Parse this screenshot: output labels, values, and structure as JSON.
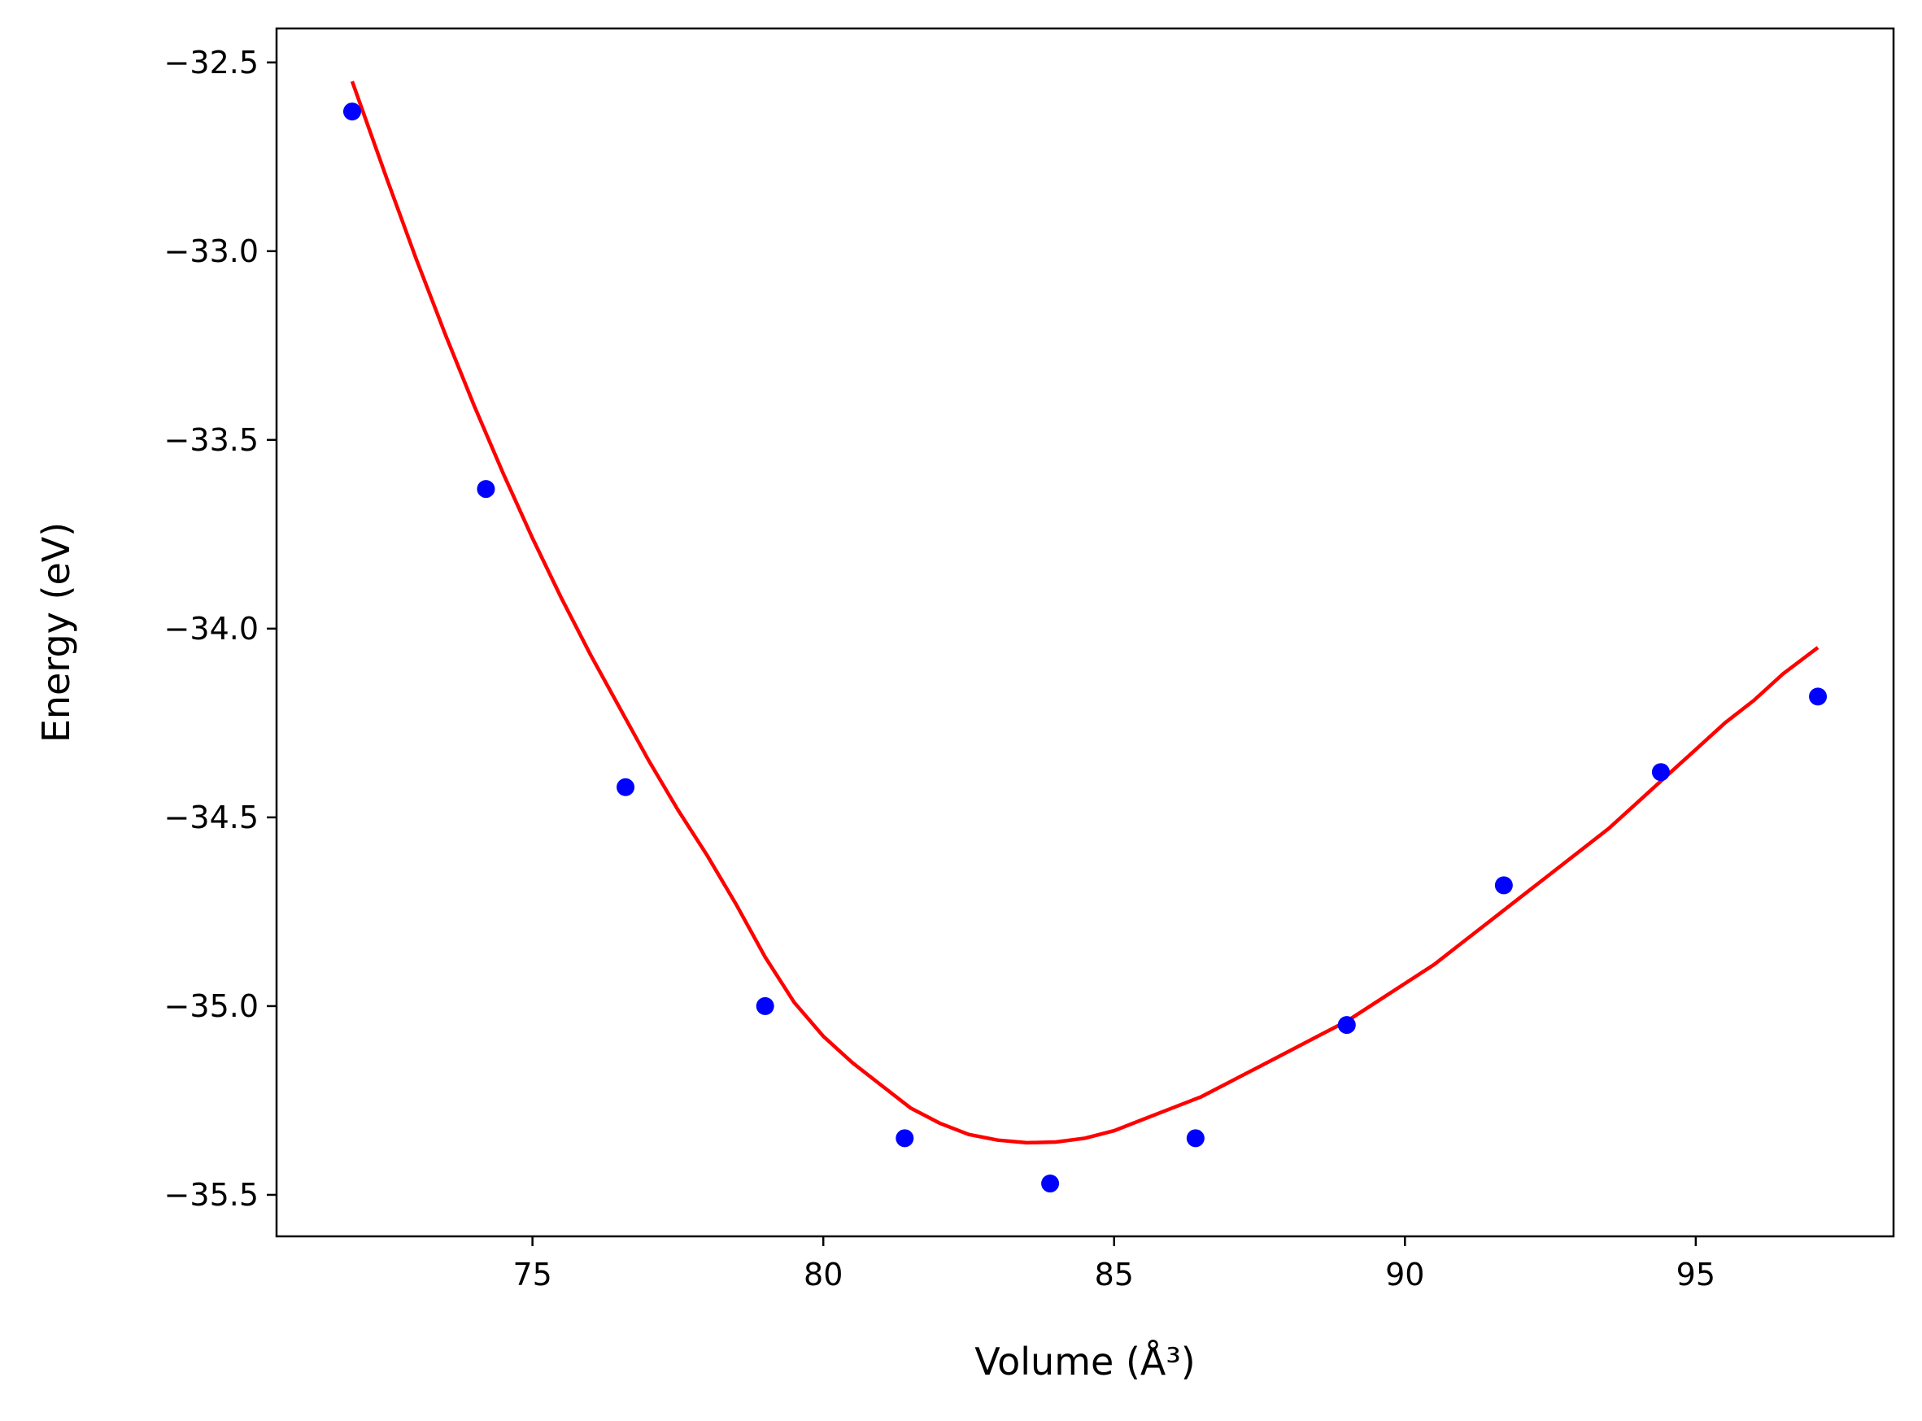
{
  "chart_data": {
    "type": "scatter",
    "xlabel": "Volume (Å³)",
    "ylabel": "Energy (eV)",
    "xlim": [
      70.6,
      98.4
    ],
    "ylim": [
      -35.61,
      -32.41
    ],
    "xticks": [
      75,
      80,
      85,
      90,
      95
    ],
    "xtick_labels": [
      "75",
      "80",
      "85",
      "90",
      "95"
    ],
    "yticks": [
      -35.5,
      -35.0,
      -34.5,
      -34.0,
      -33.5,
      -33.0,
      -32.5
    ],
    "ytick_labels": [
      "−35.5",
      "−35.0",
      "−34.5",
      "−34.0",
      "−33.5",
      "−33.0",
      "−32.5"
    ],
    "grid": false,
    "series": [
      {
        "kind": "points",
        "color": "#0000ff",
        "x": [
          71.9,
          74.2,
          76.6,
          79.0,
          81.4,
          83.9,
          86.4,
          89.0,
          91.7,
          94.4,
          97.1
        ],
        "y": [
          -32.63,
          -33.63,
          -34.42,
          -35.0,
          -35.35,
          -35.47,
          -35.35,
          -35.05,
          -34.68,
          -34.38,
          -34.18
        ]
      },
      {
        "kind": "fit-line",
        "color": "#ff0000",
        "x": [
          71.9,
          72.5,
          73.0,
          73.5,
          74.0,
          74.5,
          75.0,
          75.5,
          76.0,
          76.5,
          77.0,
          77.5,
          78.0,
          78.5,
          79.0,
          79.5,
          80.0,
          80.5,
          81.0,
          81.5,
          82.0,
          82.5,
          83.0,
          83.5,
          84.0,
          84.5,
          85.0,
          85.5,
          86.0,
          86.5,
          87.0,
          87.5,
          88.0,
          88.5,
          89.0,
          89.5,
          90.0,
          90.5,
          91.0,
          91.5,
          92.0,
          92.5,
          93.0,
          93.5,
          94.0,
          94.5,
          95.0,
          95.5,
          96.0,
          96.5,
          97.1
        ],
        "y": [
          -32.55,
          -32.81,
          -33.02,
          -33.22,
          -33.41,
          -33.59,
          -33.76,
          -33.92,
          -34.07,
          -34.21,
          -34.35,
          -34.48,
          -34.6,
          -34.73,
          -34.87,
          -34.99,
          -35.08,
          -35.15,
          -35.21,
          -35.27,
          -35.31,
          -35.34,
          -35.355,
          -35.362,
          -35.36,
          -35.35,
          -35.33,
          -35.3,
          -35.27,
          -35.24,
          -35.2,
          -35.16,
          -35.12,
          -35.08,
          -35.04,
          -34.99,
          -34.94,
          -34.89,
          -34.83,
          -34.77,
          -34.71,
          -34.65,
          -34.59,
          -34.53,
          -34.46,
          -34.39,
          -34.32,
          -34.25,
          -34.19,
          -34.12,
          -34.05
        ]
      }
    ]
  }
}
